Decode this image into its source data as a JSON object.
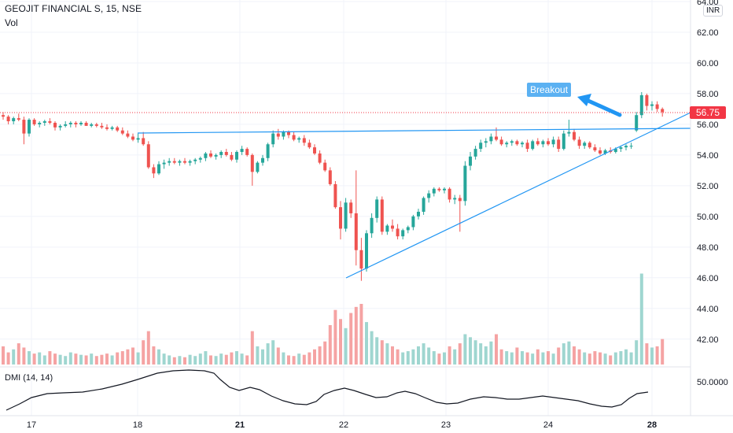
{
  "header": {
    "symbol": "GEOJIT FINANCIAL S, 15, NSE",
    "vol_label": "Vol",
    "currency": "INR"
  },
  "dmi_label": "DMI (14, 14)",
  "annotation": {
    "text": "Breakout"
  },
  "last_price": "56.75",
  "colors": {
    "up": "#26a69a",
    "down": "#ef5350",
    "trendline": "#2196f3",
    "grid": "#f0f3fa",
    "dmi": "#131722"
  },
  "chart_data": {
    "type": "candlestick",
    "price_axis": {
      "min": 40.5,
      "max": 64.0,
      "ticks": [
        "42.00",
        "44.00",
        "46.00",
        "48.00",
        "50.00",
        "52.00",
        "54.00",
        "56.00",
        "58.00",
        "60.00",
        "62.00",
        "64.00"
      ]
    },
    "x_axis_labels": [
      "17",
      "18",
      "21",
      "22",
      "23",
      "24",
      "28"
    ],
    "last_price": 56.75,
    "candles": [
      [
        56.6,
        56.8,
        56.3,
        56.5
      ],
      [
        56.5,
        56.6,
        56.0,
        56.2
      ],
      [
        56.2,
        56.5,
        56.0,
        56.4
      ],
      [
        56.4,
        56.7,
        56.2,
        56.3
      ],
      [
        56.3,
        56.5,
        54.7,
        55.4
      ],
      [
        55.4,
        56.4,
        55.2,
        56.3
      ],
      [
        56.3,
        56.4,
        55.9,
        56.0
      ],
      [
        56.0,
        56.2,
        55.8,
        56.1
      ],
      [
        56.1,
        56.3,
        55.9,
        56.2
      ],
      [
        56.2,
        56.4,
        56.0,
        56.1
      ],
      [
        56.1,
        56.2,
        55.6,
        55.8
      ],
      [
        55.8,
        56.0,
        55.6,
        55.9
      ],
      [
        55.9,
        56.2,
        55.8,
        56.0
      ],
      [
        56.0,
        56.2,
        55.8,
        56.1
      ],
      [
        56.1,
        56.2,
        55.8,
        56.0
      ],
      [
        56.0,
        56.2,
        55.9,
        56.1
      ],
      [
        56.1,
        56.2,
        55.9,
        55.9
      ],
      [
        55.9,
        56.1,
        55.8,
        56.0
      ],
      [
        56.0,
        56.1,
        55.8,
        55.9
      ],
      [
        55.9,
        56.1,
        55.7,
        55.8
      ],
      [
        55.8,
        56.0,
        55.6,
        55.7
      ],
      [
        55.7,
        55.9,
        55.6,
        55.8
      ],
      [
        55.8,
        55.9,
        55.5,
        55.6
      ],
      [
        55.6,
        55.8,
        55.3,
        55.4
      ],
      [
        55.4,
        55.6,
        55.1,
        55.2
      ],
      [
        55.2,
        55.4,
        54.9,
        55.0
      ],
      [
        55.0,
        55.4,
        54.8,
        55.1
      ],
      [
        55.1,
        55.5,
        54.6,
        54.7
      ],
      [
        54.7,
        54.9,
        53.1,
        53.2
      ],
      [
        53.2,
        53.4,
        52.5,
        52.8
      ],
      [
        52.8,
        53.6,
        52.7,
        53.4
      ],
      [
        53.4,
        53.7,
        53.1,
        53.5
      ],
      [
        53.5,
        53.8,
        53.3,
        53.6
      ],
      [
        53.6,
        53.8,
        53.4,
        53.5
      ],
      [
        53.5,
        53.7,
        53.3,
        53.6
      ],
      [
        53.6,
        53.8,
        53.4,
        53.5
      ],
      [
        53.5,
        53.7,
        53.3,
        53.6
      ],
      [
        53.6,
        53.8,
        53.4,
        53.7
      ],
      [
        53.7,
        53.9,
        53.5,
        53.8
      ],
      [
        53.8,
        54.2,
        53.6,
        54.1
      ],
      [
        54.1,
        54.3,
        53.8,
        53.9
      ],
      [
        53.9,
        54.1,
        53.7,
        54.0
      ],
      [
        54.0,
        54.3,
        53.8,
        54.2
      ],
      [
        54.2,
        54.4,
        53.9,
        54.0
      ],
      [
        54.0,
        54.2,
        53.6,
        53.7
      ],
      [
        53.7,
        54.3,
        53.5,
        54.2
      ],
      [
        54.2,
        54.6,
        54.0,
        54.4
      ],
      [
        54.4,
        54.5,
        53.9,
        54.0
      ],
      [
        54.0,
        54.1,
        52.0,
        52.9
      ],
      [
        52.9,
        53.6,
        52.8,
        53.5
      ],
      [
        53.5,
        54.0,
        53.3,
        53.8
      ],
      [
        53.8,
        54.8,
        53.6,
        54.7
      ],
      [
        54.7,
        55.6,
        54.5,
        55.4
      ],
      [
        55.4,
        55.7,
        55.0,
        55.2
      ],
      [
        55.2,
        55.6,
        55.0,
        55.5
      ],
      [
        55.5,
        55.6,
        55.1,
        55.3
      ],
      [
        55.3,
        55.5,
        54.9,
        55.0
      ],
      [
        55.0,
        55.2,
        54.8,
        55.1
      ],
      [
        55.1,
        55.3,
        54.6,
        54.8
      ],
      [
        54.8,
        55.0,
        54.4,
        54.5
      ],
      [
        54.5,
        54.7,
        54.0,
        54.1
      ],
      [
        54.1,
        54.3,
        53.4,
        53.5
      ],
      [
        53.5,
        53.7,
        52.9,
        53.0
      ],
      [
        53.0,
        53.2,
        52.0,
        52.1
      ],
      [
        52.1,
        52.3,
        50.5,
        50.6
      ],
      [
        50.6,
        51.0,
        48.5,
        49.2
      ],
      [
        49.2,
        51.2,
        49.0,
        50.9
      ],
      [
        50.9,
        51.1,
        49.9,
        50.2
      ],
      [
        50.2,
        53.0,
        46.8,
        47.8
      ],
      [
        47.8,
        48.6,
        45.8,
        46.6
      ],
      [
        46.6,
        49.1,
        46.4,
        48.9
      ],
      [
        48.9,
        50.2,
        48.6,
        49.9
      ],
      [
        49.9,
        51.3,
        49.6,
        51.1
      ],
      [
        51.1,
        51.3,
        48.8,
        49.0
      ],
      [
        49.0,
        49.5,
        48.8,
        49.4
      ],
      [
        49.4,
        49.8,
        49.0,
        49.2
      ],
      [
        49.2,
        49.5,
        48.5,
        48.7
      ],
      [
        48.7,
        49.2,
        48.5,
        49.1
      ],
      [
        49.1,
        49.4,
        48.9,
        49.3
      ],
      [
        49.3,
        50.1,
        49.1,
        50.0
      ],
      [
        50.0,
        50.5,
        49.8,
        50.3
      ],
      [
        50.3,
        51.3,
        50.1,
        51.2
      ],
      [
        51.2,
        51.7,
        50.9,
        51.5
      ],
      [
        51.5,
        51.9,
        51.3,
        51.8
      ],
      [
        51.8,
        51.9,
        51.6,
        51.7
      ],
      [
        51.7,
        51.9,
        51.5,
        51.8
      ],
      [
        51.8,
        51.9,
        50.9,
        51.1
      ],
      [
        51.1,
        51.4,
        50.8,
        51.2
      ],
      [
        51.2,
        51.4,
        49.0,
        51.0
      ],
      [
        51.0,
        53.6,
        50.7,
        53.3
      ],
      [
        53.3,
        54.2,
        53.0,
        53.9
      ],
      [
        53.9,
        54.6,
        53.7,
        54.4
      ],
      [
        54.4,
        55.0,
        54.2,
        54.8
      ],
      [
        54.8,
        55.1,
        54.5,
        54.9
      ],
      [
        54.9,
        55.4,
        54.7,
        55.2
      ],
      [
        55.2,
        55.8,
        54.9,
        55.0
      ],
      [
        55.0,
        55.2,
        54.6,
        54.7
      ],
      [
        54.7,
        54.9,
        54.5,
        54.8
      ],
      [
        54.8,
        55.0,
        54.6,
        54.9
      ],
      [
        54.9,
        55.0,
        54.6,
        54.7
      ],
      [
        54.7,
        54.9,
        54.5,
        54.8
      ],
      [
        54.8,
        55.0,
        54.2,
        54.4
      ],
      [
        54.4,
        55.0,
        54.3,
        54.9
      ],
      [
        54.9,
        55.1,
        54.6,
        54.7
      ],
      [
        54.7,
        55.0,
        54.5,
        54.9
      ],
      [
        54.9,
        55.1,
        54.6,
        54.7
      ],
      [
        54.7,
        55.2,
        54.5,
        55.0
      ],
      [
        55.0,
        55.2,
        54.2,
        54.4
      ],
      [
        54.4,
        55.6,
        54.3,
        55.4
      ],
      [
        55.4,
        56.3,
        55.2,
        55.5
      ],
      [
        55.5,
        55.7,
        54.9,
        55.0
      ],
      [
        55.0,
        55.2,
        54.4,
        54.6
      ],
      [
        54.6,
        54.9,
        54.4,
        54.8
      ],
      [
        54.8,
        54.9,
        54.4,
        54.5
      ],
      [
        54.5,
        54.7,
        54.2,
        54.3
      ],
      [
        54.3,
        54.5,
        54.0,
        54.1
      ],
      [
        54.1,
        54.4,
        54.0,
        54.3
      ],
      [
        54.3,
        54.5,
        54.1,
        54.2
      ],
      [
        54.2,
        54.5,
        54.1,
        54.4
      ],
      [
        54.4,
        54.6,
        54.2,
        54.5
      ],
      [
        54.5,
        54.7,
        54.3,
        54.6
      ],
      [
        54.6,
        54.8,
        54.4,
        54.6
      ],
      [
        55.6,
        56.8,
        55.5,
        56.6
      ],
      [
        56.6,
        58.1,
        56.4,
        57.9
      ],
      [
        57.9,
        58.0,
        56.9,
        57.2
      ],
      [
        57.2,
        57.5,
        56.9,
        57.3
      ],
      [
        57.3,
        57.5,
        56.8,
        57.0
      ],
      [
        57.0,
        57.1,
        56.5,
        56.8
      ]
    ],
    "volumes": [
      30,
      20,
      25,
      35,
      28,
      22,
      18,
      20,
      15,
      22,
      18,
      16,
      14,
      20,
      18,
      16,
      15,
      18,
      14,
      16,
      18,
      15,
      20,
      22,
      25,
      28,
      20,
      40,
      55,
      30,
      25,
      18,
      15,
      12,
      14,
      12,
      16,
      14,
      18,
      22,
      15,
      14,
      18,
      16,
      20,
      22,
      18,
      15,
      55,
      30,
      25,
      35,
      40,
      28,
      20,
      15,
      14,
      18,
      16,
      20,
      25,
      30,
      38,
      65,
      90,
      75,
      60,
      85,
      95,
      100,
      70,
      55,
      45,
      40,
      35,
      30,
      25,
      20,
      22,
      25,
      30,
      35,
      28,
      22,
      18,
      20,
      30,
      25,
      35,
      50,
      45,
      40,
      35,
      30,
      38,
      50,
      25,
      22,
      20,
      28,
      22,
      20,
      18,
      25,
      20,
      22,
      18,
      28,
      35,
      38,
      30,
      25,
      20,
      18,
      22,
      20,
      18,
      15,
      20,
      22,
      25,
      20,
      40,
      150,
      35,
      28,
      30,
      42
    ],
    "dmi": [
      [
        8,
        521
      ],
      [
        25,
        513
      ],
      [
        40,
        505
      ],
      [
        60,
        500
      ],
      [
        80,
        499
      ],
      [
        105,
        498
      ],
      [
        130,
        494
      ],
      [
        155,
        488
      ],
      [
        175,
        482
      ],
      [
        200,
        474
      ],
      [
        220,
        471
      ],
      [
        240,
        470
      ],
      [
        260,
        471
      ],
      [
        272,
        474
      ],
      [
        280,
        482
      ],
      [
        292,
        492
      ],
      [
        304,
        496
      ],
      [
        318,
        492
      ],
      [
        330,
        495
      ],
      [
        345,
        503
      ],
      [
        360,
        509
      ],
      [
        375,
        513
      ],
      [
        390,
        514
      ],
      [
        402,
        510
      ],
      [
        412,
        501
      ],
      [
        425,
        496
      ],
      [
        438,
        493
      ],
      [
        450,
        496
      ],
      [
        465,
        501
      ],
      [
        478,
        505
      ],
      [
        492,
        504
      ],
      [
        505,
        499
      ],
      [
        515,
        497
      ],
      [
        528,
        500
      ],
      [
        540,
        505
      ],
      [
        555,
        511
      ],
      [
        568,
        513
      ],
      [
        582,
        512
      ],
      [
        598,
        507
      ],
      [
        615,
        504
      ],
      [
        630,
        505
      ],
      [
        645,
        507
      ],
      [
        660,
        507
      ],
      [
        675,
        505
      ],
      [
        690,
        503
      ],
      [
        705,
        505
      ],
      [
        720,
        507
      ],
      [
        735,
        509
      ],
      [
        750,
        513
      ],
      [
        765,
        516
      ],
      [
        778,
        517
      ],
      [
        790,
        514
      ],
      [
        800,
        506
      ],
      [
        810,
        500
      ],
      [
        824,
        498
      ]
    ]
  }
}
